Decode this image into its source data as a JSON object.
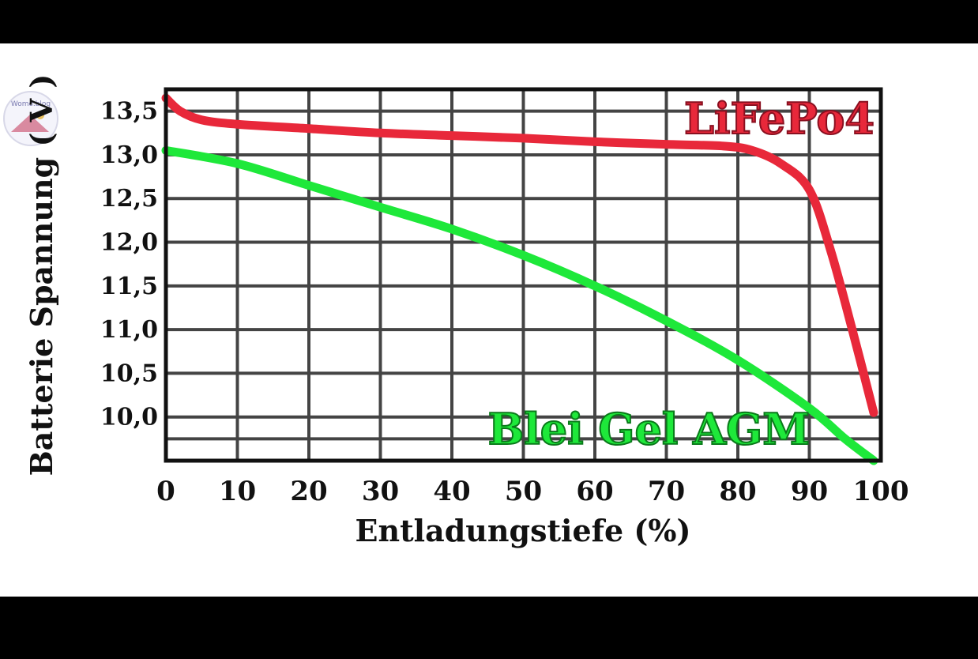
{
  "watermark": {
    "text": "Womo.blog"
  },
  "chart_data": {
    "type": "line",
    "title": "",
    "xlabel": "Entladungstiefe (%)",
    "ylabel": "Batterie Spannung ( V )",
    "xlim": [
      0,
      100
    ],
    "ylim": [
      9.5,
      13.75
    ],
    "x_ticks": [
      "0",
      "10",
      "20",
      "30",
      "40",
      "50",
      "60",
      "70",
      "80",
      "90",
      "100"
    ],
    "y_ticks": [
      "13,5",
      "13,0",
      "12,5",
      "12,0",
      "11,5",
      "11,0",
      "10,5",
      "10,0"
    ],
    "grid": true,
    "series": [
      {
        "name": "LiFePo4",
        "color": "#e8283a",
        "x": [
          0,
          2,
          5,
          10,
          20,
          30,
          40,
          50,
          60,
          70,
          78,
          82,
          86,
          90,
          93,
          96,
          99
        ],
        "y": [
          13.65,
          13.5,
          13.4,
          13.35,
          13.3,
          13.25,
          13.22,
          13.19,
          13.15,
          13.12,
          13.1,
          13.05,
          12.9,
          12.6,
          11.9,
          11.0,
          10.05
        ]
      },
      {
        "name": "Blei Gel AGM",
        "color": "#1ee83a",
        "x": [
          0,
          10,
          20,
          30,
          40,
          50,
          60,
          70,
          80,
          90,
          95,
          99
        ],
        "y": [
          13.05,
          12.9,
          12.65,
          12.4,
          12.15,
          11.85,
          11.5,
          11.1,
          10.65,
          10.1,
          9.75,
          9.5
        ]
      }
    ]
  }
}
